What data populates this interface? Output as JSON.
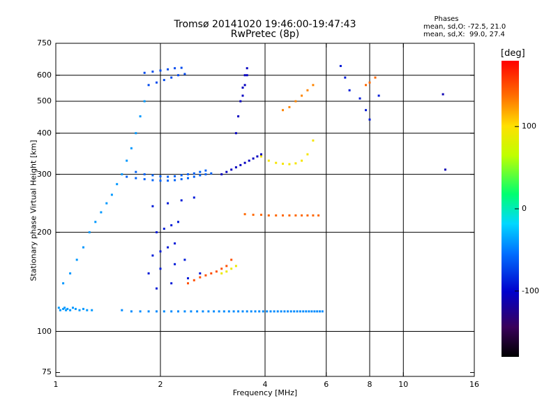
{
  "title": {
    "line1": "Tromsø 20141020 19:46:00-19:47:43",
    "line2": "RwPretec (8p)"
  },
  "stats": {
    "heading": "Phases",
    "o_line": "mean, sd,O: -72.5, 21.0",
    "x_line": "mean, sd,X:  99.0, 27.4"
  },
  "chart_data": {
    "type": "scatter",
    "xlabel": "Frequency [MHz]",
    "ylabel": "Stationary phase Virtual Height [km]",
    "x_scale": "log",
    "y_scale": "log",
    "xlim": [
      1,
      16
    ],
    "ylim": [
      73,
      750
    ],
    "x_ticks": [
      {
        "value": 1,
        "label": "1"
      },
      {
        "value": 2,
        "label": "2"
      },
      {
        "value": 4,
        "label": "4"
      },
      {
        "value": 6,
        "label": "6"
      },
      {
        "value": 8,
        "label": "8"
      },
      {
        "value": 10,
        "label": "10"
      },
      {
        "value": 16,
        "label": "16"
      }
    ],
    "x_grid": [
      2,
      4,
      6,
      8,
      10
    ],
    "y_ticks": [
      {
        "value": 75,
        "label": "75"
      },
      {
        "value": 100,
        "label": "100"
      },
      {
        "value": 200,
        "label": "200"
      },
      {
        "value": 300,
        "label": "300"
      },
      {
        "value": 400,
        "label": "400"
      },
      {
        "value": 500,
        "label": "500"
      },
      {
        "value": 600,
        "label": "600"
      },
      {
        "value": 750,
        "label": "750"
      }
    ],
    "y_grid": [
      100,
      200,
      300,
      400,
      500,
      600
    ],
    "colorbar": {
      "title": "[deg]",
      "range": [
        -180,
        180
      ],
      "ticks": [
        {
          "value": 100,
          "label": "100"
        },
        {
          "value": 0,
          "label": "0"
        },
        {
          "value": -100,
          "label": "-100"
        }
      ]
    },
    "series": [
      {
        "x": [
          1.02,
          1.03,
          1.05,
          1.06,
          1.07,
          1.08,
          1.1,
          1.12,
          1.14,
          1.17,
          1.2,
          1.23,
          1.27,
          1.05,
          1.1,
          1.15,
          1.2,
          1.25,
          1.3,
          1.35,
          1.4,
          1.45,
          1.5,
          1.55,
          1.6,
          1.65,
          1.7,
          1.75,
          1.8
        ],
        "y": [
          118,
          116,
          117,
          118,
          116,
          117,
          116,
          118,
          117,
          116,
          117,
          116,
          116,
          140,
          150,
          165,
          180,
          200,
          215,
          230,
          245,
          260,
          280,
          300,
          330,
          360,
          400,
          450,
          500
        ],
        "phase": -40
      },
      {
        "x": [
          1.55,
          1.65,
          1.75,
          1.85,
          1.95,
          2.05,
          2.15,
          2.25,
          2.35,
          2.45,
          2.55,
          2.65,
          2.75,
          2.85,
          2.95,
          3.05,
          3.15,
          3.25,
          3.35,
          3.45,
          3.55,
          3.65,
          3.75,
          3.85,
          3.95,
          4.05,
          4.15,
          4.25,
          4.35,
          4.45,
          4.55,
          4.65,
          4.75,
          4.85,
          4.95,
          5.05,
          5.15,
          5.25,
          5.35,
          5.45,
          5.55,
          5.65,
          5.75,
          5.85
        ],
        "y": [
          116,
          115,
          115,
          115,
          115,
          115,
          115,
          115,
          115,
          115,
          115,
          115,
          115,
          115,
          115,
          115,
          115,
          115,
          115,
          115,
          115,
          115,
          115,
          115,
          115,
          115,
          115,
          115,
          115,
          115,
          115,
          115,
          115,
          115,
          115,
          115,
          115,
          115,
          115,
          115,
          115,
          115,
          115,
          115
        ],
        "phase": -45
      },
      {
        "x": [
          1.6,
          1.7,
          1.8,
          1.9,
          2.0,
          2.1,
          2.2,
          2.3,
          2.4,
          2.5,
          2.6,
          2.7,
          2.8,
          1.7,
          1.8,
          1.9,
          2.0,
          2.1,
          2.2,
          2.3,
          2.4,
          2.5,
          2.6,
          2.7
        ],
        "y": [
          295,
          292,
          290,
          288,
          287,
          287,
          288,
          290,
          292,
          295,
          298,
          300,
          302,
          305,
          300,
          298,
          296,
          295,
          296,
          298,
          300,
          302,
          305,
          308
        ],
        "phase": -60
      },
      {
        "x": [
          1.9,
          2.0,
          2.1,
          2.2,
          1.95,
          2.05,
          2.15,
          2.25,
          1.85,
          2.0,
          2.2,
          2.35,
          1.9,
          2.1,
          2.3,
          2.5,
          1.95,
          2.15,
          2.4,
          2.6
        ],
        "y": [
          170,
          175,
          180,
          185,
          200,
          205,
          210,
          215,
          150,
          155,
          160,
          165,
          240,
          245,
          250,
          255,
          135,
          140,
          145,
          150
        ],
        "phase": -90
      },
      {
        "x": [
          1.8,
          1.9,
          2.0,
          2.1,
          2.2,
          2.3,
          1.85,
          1.95,
          2.05,
          2.15,
          2.25,
          2.35
        ],
        "y": [
          610,
          615,
          620,
          625,
          630,
          632,
          560,
          570,
          580,
          590,
          600,
          605
        ],
        "phase": -70
      },
      {
        "x": [
          3.0,
          3.1,
          3.2,
          3.3,
          3.4,
          3.5,
          3.6,
          3.7,
          3.8,
          3.9,
          3.3,
          3.35,
          3.4,
          3.45,
          3.5,
          3.55,
          3.45,
          3.5,
          3.55
        ],
        "y": [
          300,
          305,
          310,
          315,
          320,
          325,
          330,
          335,
          340,
          345,
          400,
          450,
          500,
          550,
          600,
          630,
          520,
          560,
          600
        ],
        "phase": -105
      },
      {
        "x": [
          3.5,
          3.7,
          3.9,
          4.1,
          4.3,
          4.5,
          4.7,
          4.9,
          5.1,
          5.3,
          5.5,
          5.7
        ],
        "y": [
          227,
          226,
          226,
          225,
          225,
          225,
          225,
          225,
          225,
          225,
          225,
          225
        ],
        "phase": 140
      },
      {
        "x": [
          3.9,
          4.1,
          4.3,
          4.5,
          4.7,
          4.9,
          5.1,
          5.3,
          5.5
        ],
        "y": [
          340,
          330,
          325,
          323,
          322,
          324,
          330,
          345,
          380
        ],
        "phase": 95
      },
      {
        "x": [
          2.4,
          2.5,
          2.6,
          2.7,
          2.8,
          2.9,
          3.0,
          3.1,
          3.2
        ],
        "y": [
          140,
          143,
          146,
          148,
          150,
          152,
          155,
          158,
          165
        ],
        "phase": 150
      },
      {
        "x": [
          3.0,
          3.1,
          3.2,
          3.3
        ],
        "y": [
          150,
          152,
          155,
          158
        ],
        "phase": 90
      },
      {
        "x": [
          4.5,
          4.7,
          4.9,
          5.1,
          5.3,
          5.5
        ],
        "y": [
          470,
          480,
          500,
          520,
          540,
          560
        ],
        "phase": 130
      },
      {
        "x": [
          6.6,
          6.8,
          7.0,
          7.5,
          7.8,
          8.0,
          8.5
        ],
        "y": [
          640,
          590,
          540,
          510,
          470,
          440,
          520
        ],
        "phase": -90
      },
      {
        "x": [
          7.8,
          8.0,
          8.3
        ],
        "y": [
          560,
          570,
          590
        ],
        "phase": 140
      },
      {
        "x": [
          13.2,
          13.0
        ],
        "y": [
          310,
          525
        ],
        "phase": -110
      }
    ]
  }
}
